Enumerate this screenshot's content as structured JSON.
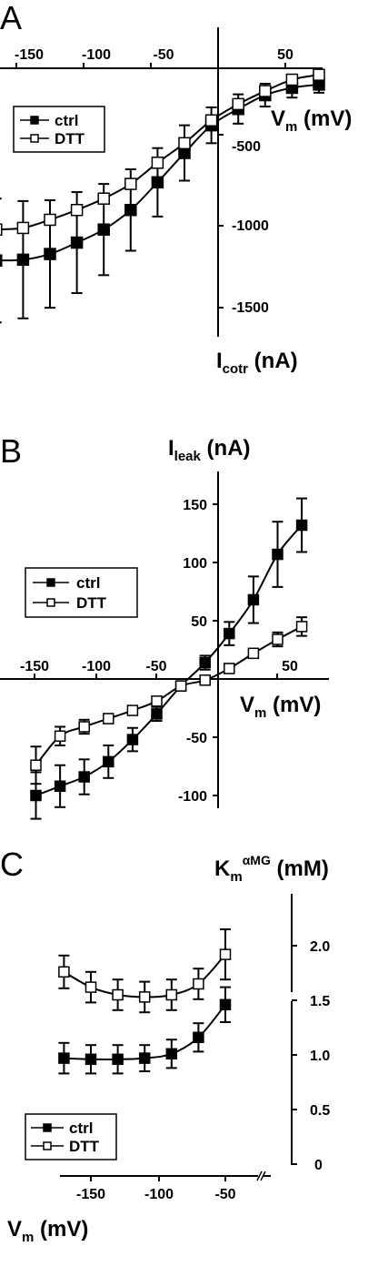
{
  "chart_data": [
    {
      "panel_label": "A",
      "type": "line",
      "x_label": {
        "main": "V",
        "sub": "m",
        "unit": " (mV)"
      },
      "y_label": {
        "main": "I",
        "sub": "cotr",
        "unit": " (nA)"
      },
      "x_ticks": [
        "-150",
        "-100",
        "-50",
        "50"
      ],
      "y_ticks": [
        "-500",
        "-1000",
        "-1500"
      ],
      "xlim": [
        -170,
        70
      ],
      "ylim": [
        -1650,
        0
      ],
      "x": [
        -165,
        -145,
        -125,
        -105,
        -85,
        -65,
        -45,
        -25,
        -5,
        15,
        35,
        55,
        75
      ],
      "series": [
        {
          "name": "ctrl",
          "marker": "filled-square",
          "values": [
            -1180,
            -1175,
            -1140,
            -1070,
            -990,
            -870,
            -700,
            -520,
            -350,
            -250,
            -165,
            -120,
            -100
          ],
          "errors": [
            380,
            360,
            330,
            310,
            280,
            250,
            210,
            170,
            110,
            90,
            70,
            60,
            50
          ]
        },
        {
          "name": "DTT",
          "marker": "open-square",
          "values": [
            -990,
            -980,
            -930,
            -870,
            -800,
            -710,
            -580,
            -460,
            -320,
            -220,
            -140,
            -70,
            -40
          ],
          "errors": [
            0,
            0,
            0,
            0,
            0,
            0,
            0,
            0,
            0,
            0,
            0,
            0,
            0
          ]
        }
      ]
    },
    {
      "panel_label": "B",
      "type": "line",
      "x_label": {
        "main": "V",
        "sub": "m",
        "unit": " (mV)"
      },
      "y_label": {
        "main": "I",
        "sub": "leak",
        "unit": " (nA)"
      },
      "x_ticks": [
        "-150",
        "-100",
        "-50",
        "50"
      ],
      "y_ticks": [
        "150",
        "100",
        "50",
        "-50",
        "-100"
      ],
      "xlim": [
        -170,
        75
      ],
      "ylim": [
        -125,
        175
      ],
      "x": [
        -150,
        -130,
        -110,
        -90,
        -70,
        -50,
        -30,
        -10,
        10,
        30,
        50,
        70
      ],
      "series": [
        {
          "name": "ctrl",
          "marker": "filled-square",
          "values": [
            -100,
            -92,
            -84,
            -71,
            -52,
            -30,
            -6,
            14,
            39,
            68,
            107,
            132
          ],
          "errors": [
            20,
            18,
            15,
            14,
            10,
            6,
            4,
            6,
            10,
            20,
            28,
            23
          ]
        },
        {
          "name": "DTT",
          "marker": "open-square",
          "values": [
            -74,
            -49,
            -41,
            -34,
            -27,
            -19,
            -6,
            -1,
            9,
            22,
            34,
            45
          ],
          "errors": [
            16,
            8,
            6,
            4,
            3,
            3,
            2,
            3,
            4,
            4,
            6,
            8
          ]
        }
      ]
    },
    {
      "panel_label": "C",
      "type": "line",
      "x_label": {
        "main": "V",
        "sub": "m",
        "unit": " (mV)"
      },
      "y_label": {
        "main": "K",
        "sub": "m",
        "sup": "αMG",
        "unit": " (mM)"
      },
      "x_ticks": [
        "-150",
        "-100",
        "-50"
      ],
      "y_ticks": [
        "2.0",
        "1.5",
        "1.0",
        "0.5",
        "0"
      ],
      "xlim": [
        -175,
        -40
      ],
      "ylim": [
        0,
        2.2
      ],
      "x": [
        -170,
        -150,
        -130,
        -110,
        -90,
        -70,
        -50
      ],
      "series": [
        {
          "name": "ctrl",
          "marker": "filled-square",
          "values": [
            0.97,
            0.96,
            0.96,
            0.97,
            1.01,
            1.16,
            1.46
          ],
          "errors": [
            0.14,
            0.13,
            0.13,
            0.12,
            0.13,
            0.13,
            0.16
          ]
        },
        {
          "name": "DTT",
          "marker": "open-square",
          "values": [
            1.76,
            1.62,
            1.55,
            1.53,
            1.55,
            1.65,
            1.92
          ],
          "errors": [
            0.15,
            0.14,
            0.14,
            0.14,
            0.14,
            0.14,
            0.23
          ]
        }
      ]
    }
  ]
}
